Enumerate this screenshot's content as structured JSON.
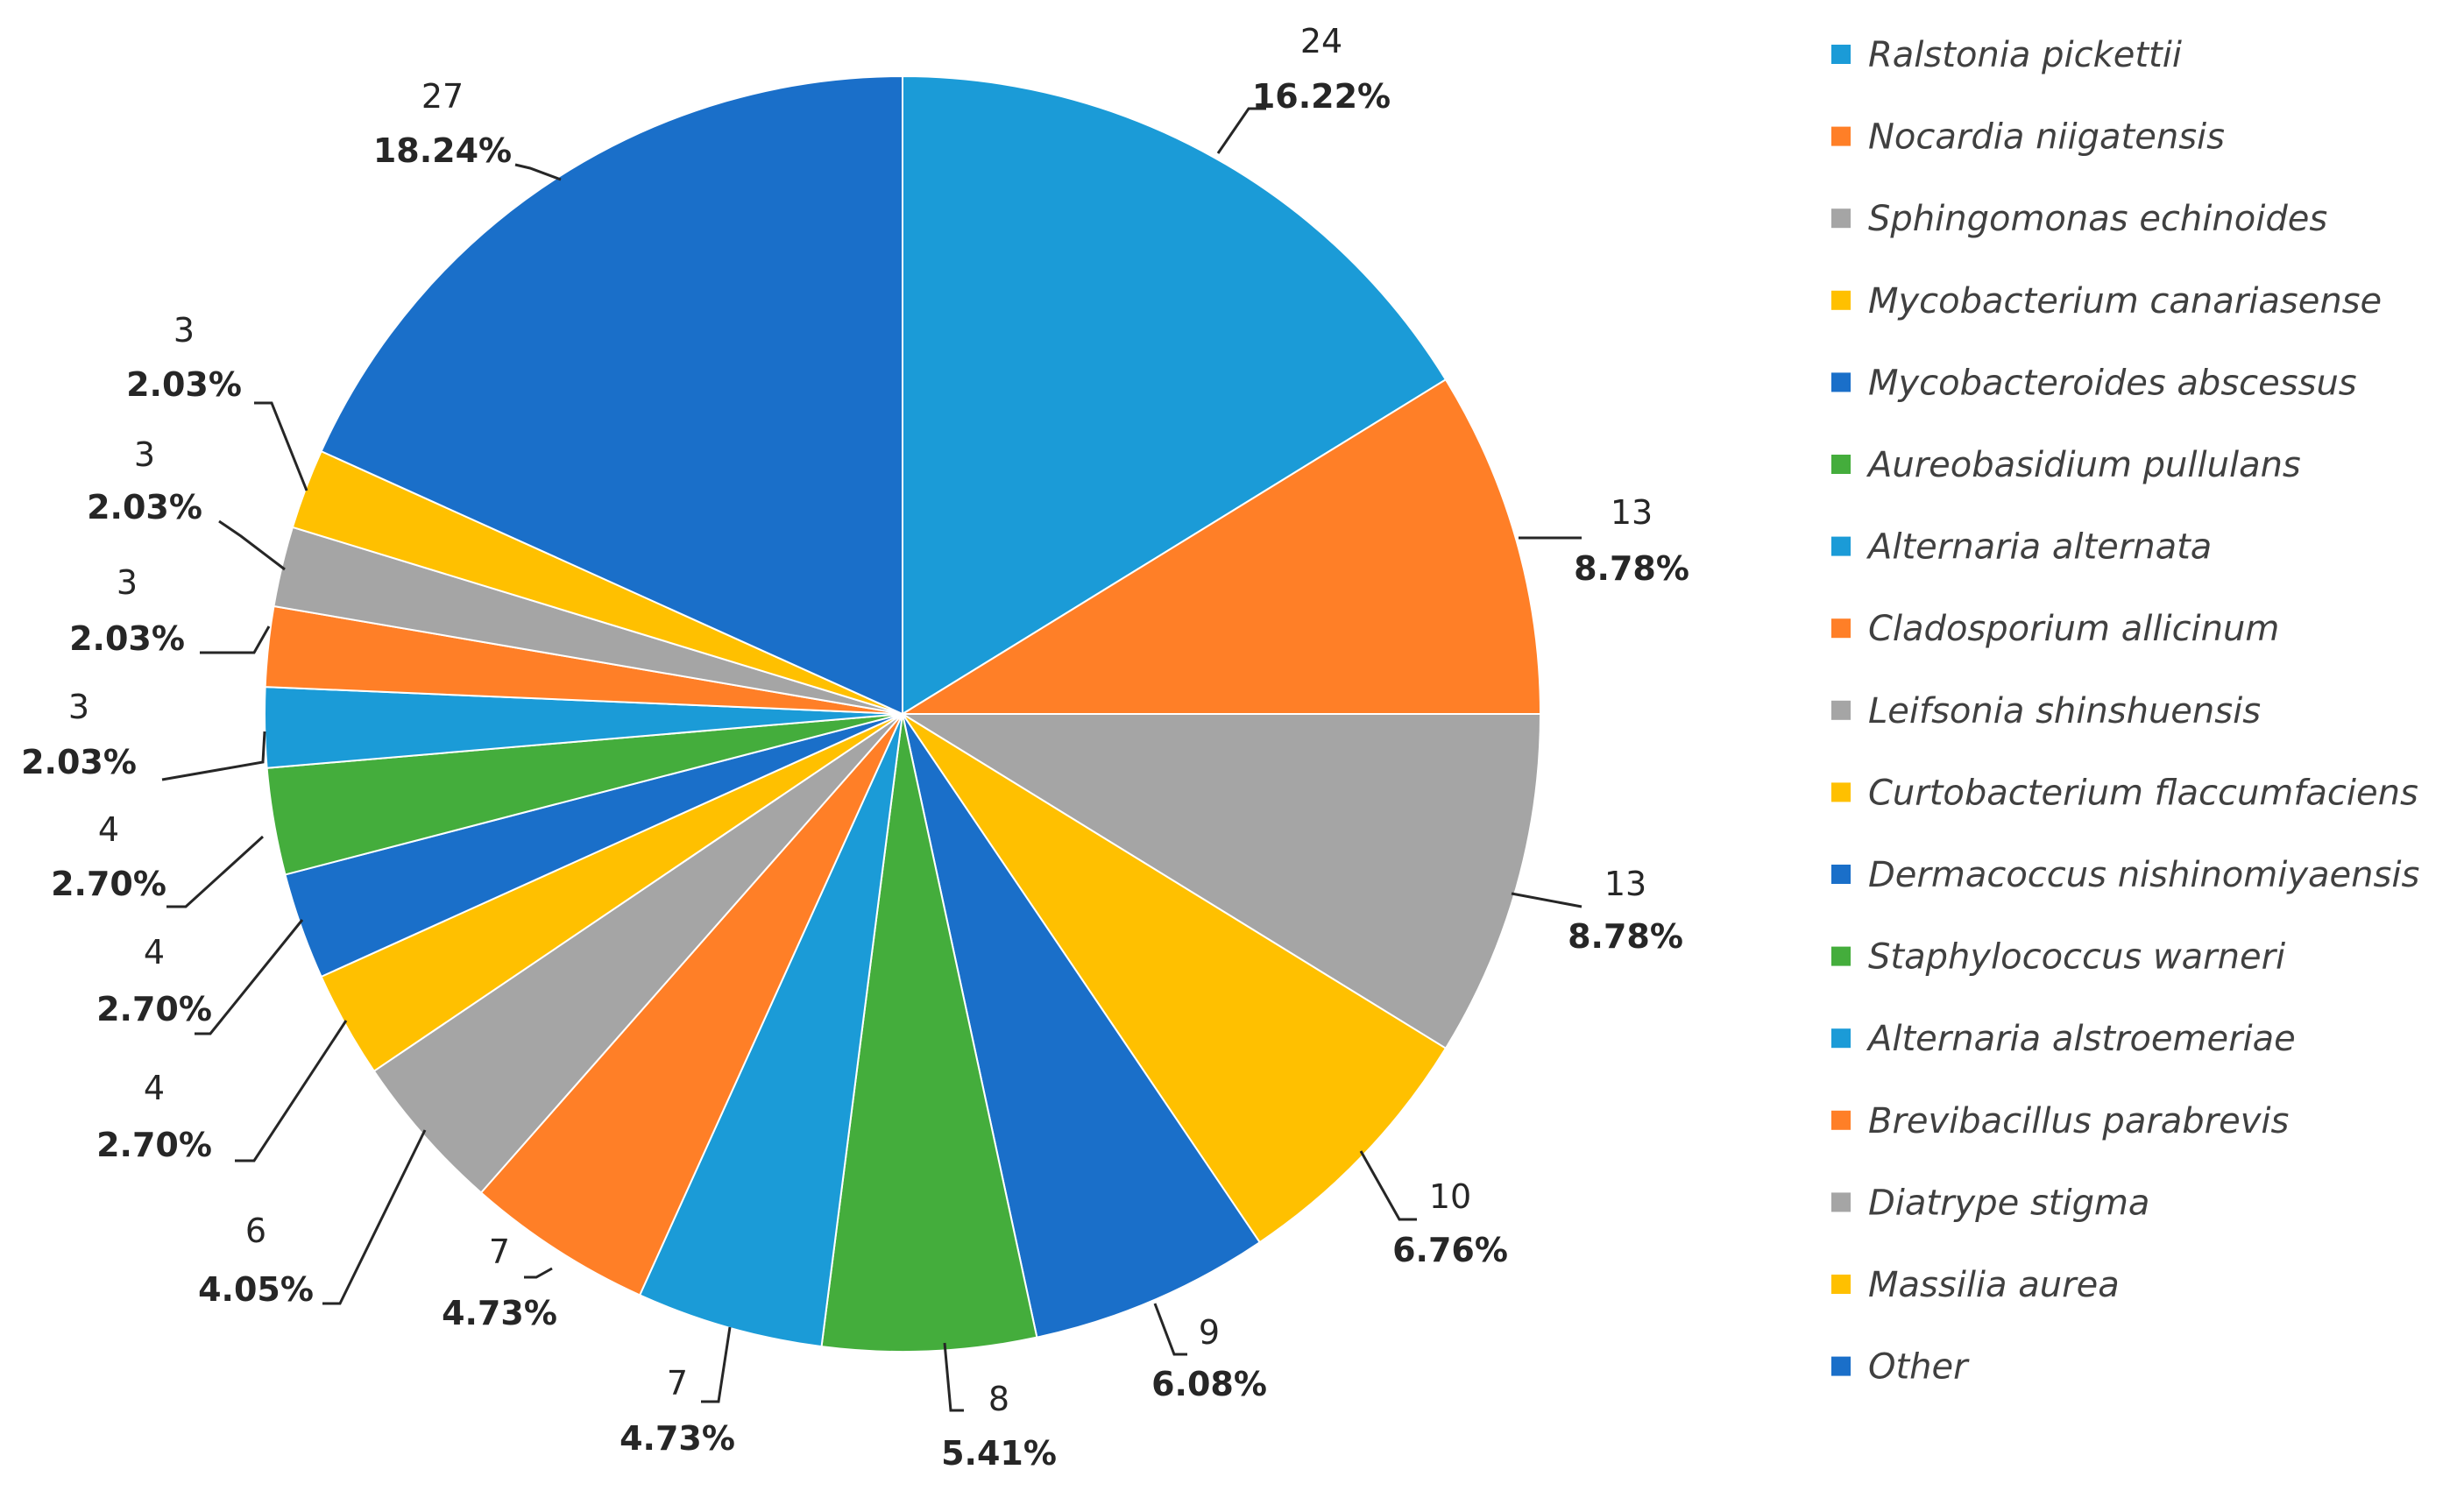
{
  "chart_data": {
    "type": "pie",
    "start_angle": "12 o'clock",
    "direction": "clockwise",
    "slices": [
      {
        "label": "Ralstonia pickettii",
        "value": 24,
        "percent": "16.22%",
        "color": "#1B9BD7"
      },
      {
        "label": "Nocardia niigatensis",
        "value": 13,
        "percent": "8.78%",
        "color": "#FF7F27"
      },
      {
        "label": "Sphingomonas echinoides",
        "value": 13,
        "percent": "8.78%",
        "color": "#A5A5A5"
      },
      {
        "label": "Mycobacterium canariasense",
        "value": 10,
        "percent": "6.76%",
        "color": "#FFC000"
      },
      {
        "label": "Mycobacteroides abscessus",
        "value": 9,
        "percent": "6.08%",
        "color": "#1A6FC9"
      },
      {
        "label": "Aureobasidium pullulans",
        "value": 8,
        "percent": "5.41%",
        "color": "#44AD3C"
      },
      {
        "label": "Alternaria alternata",
        "value": 7,
        "percent": "4.73%",
        "color": "#1B9BD7"
      },
      {
        "label": "Cladosporium allicinum",
        "value": 7,
        "percent": "4.73%",
        "color": "#FF7F27"
      },
      {
        "label": "Leifsonia shinshuensis",
        "value": 6,
        "percent": "4.05%",
        "color": "#A5A5A5"
      },
      {
        "label": "Curtobacterium flaccumfaciens",
        "value": 4,
        "percent": "2.70%",
        "color": "#FFC000"
      },
      {
        "label": "Dermacoccus nishinomiyaensis",
        "value": 4,
        "percent": "2.70%",
        "color": "#1A6FC9"
      },
      {
        "label": "Staphylococcus warneri",
        "value": 4,
        "percent": "2.70%",
        "color": "#44AD3C"
      },
      {
        "label": "Alternaria alstroemeriae",
        "value": 3,
        "percent": "2.03%",
        "color": "#1B9BD7"
      },
      {
        "label": "Brevibacillus parabrevis",
        "value": 3,
        "percent": "2.03%",
        "color": "#FF7F27"
      },
      {
        "label": "Diatrype stigma",
        "value": 3,
        "percent": "2.03%",
        "color": "#A5A5A5"
      },
      {
        "label": "Massilia aurea",
        "value": 3,
        "percent": "2.03%",
        "color": "#FFC000"
      },
      {
        "label": "Other",
        "value": 27,
        "percent": "18.24%",
        "color": "#1A6FC9"
      }
    ]
  }
}
